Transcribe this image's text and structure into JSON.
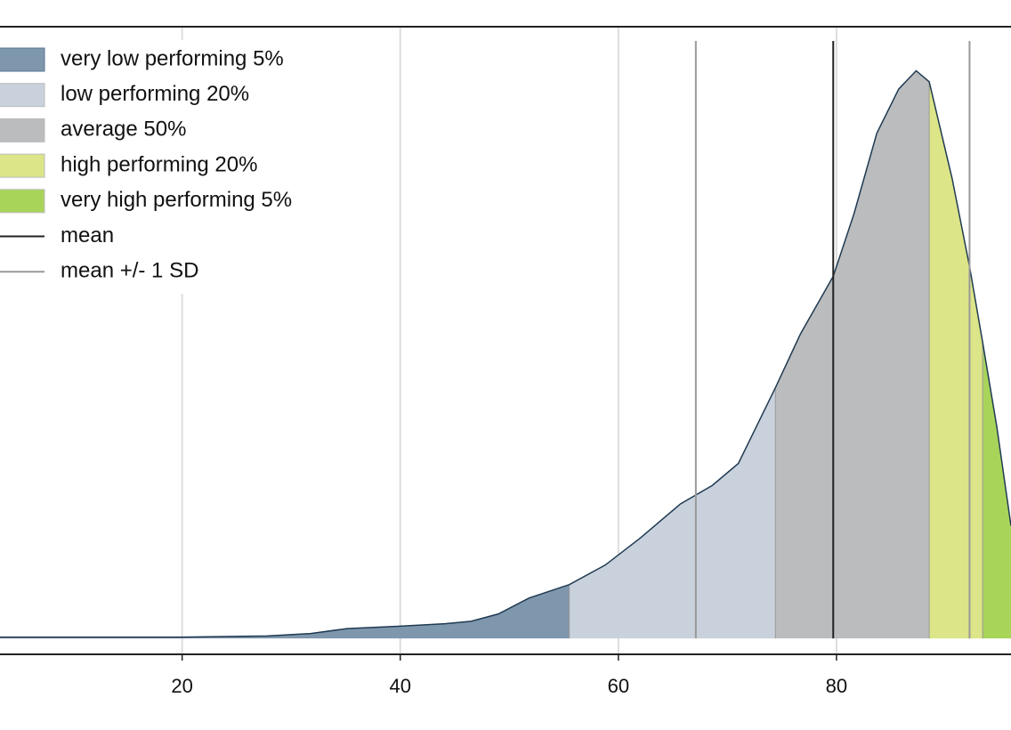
{
  "chart_data": {
    "type": "density",
    "x": [
      3.3,
      7.4,
      13.1,
      19.6,
      27.8,
      31.8,
      35.1,
      40,
      44.1,
      46.5,
      49,
      51.8,
      55.5,
      58.8,
      62,
      65.7,
      68.6,
      71,
      74.4,
      76.7,
      79.7,
      81.6,
      83.7,
      85.7,
      87.3,
      88.5,
      90.6,
      92.2,
      93.4,
      94.7,
      96
    ],
    "values": [
      0.0001,
      0.0001,
      0.0001,
      0.0001,
      0.0002,
      0.0004,
      0.0008,
      0.001,
      0.0012,
      0.0014,
      0.002,
      0.0033,
      0.0044,
      0.006,
      0.0082,
      0.011,
      0.0125,
      0.0143,
      0.0205,
      0.0249,
      0.0296,
      0.0347,
      0.0413,
      0.0449,
      0.0464,
      0.0455,
      0.0376,
      0.0304,
      0.0242,
      0.0173,
      0.0092
    ],
    "color": "#1f3a52",
    "bands": [
      {
        "name": "very low performing 5%",
        "color": "#7f97ad",
        "range": [
          3.3,
          55.5
        ]
      },
      {
        "name": "low performing 20%",
        "color": "#c9d1dc",
        "range": [
          55.5,
          74.4
        ]
      },
      {
        "name": "average 50%",
        "color": "#bbbcbe",
        "range": [
          74.4,
          88.5
        ]
      },
      {
        "name": "high performing 20%",
        "color": "#dce587",
        "range": [
          88.5,
          93.4
        ]
      },
      {
        "name": "very high performing 5%",
        "color": "#a8d45a",
        "range": [
          93.4,
          96
        ]
      }
    ],
    "mean": {
      "name": "mean",
      "color": "#222222",
      "value": 79.7
    },
    "sd": {
      "name": "mean +/- 1 SD",
      "color": "#999999",
      "values": [
        67.1,
        92.2
      ]
    },
    "xlim": [
      3.3,
      96
    ],
    "xticks": [
      20,
      40,
      60,
      80
    ],
    "ylim": [
      -0.0013,
      0.05
    ],
    "grid": true
  }
}
